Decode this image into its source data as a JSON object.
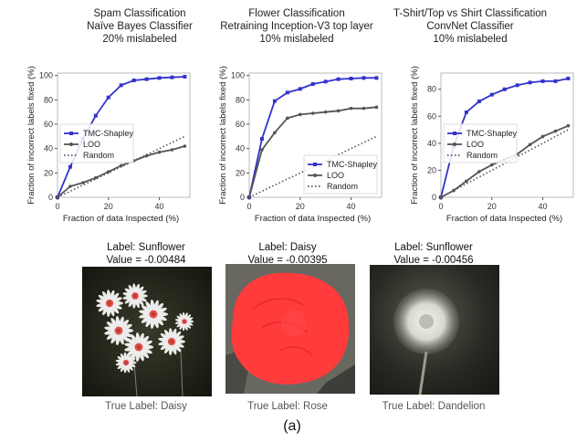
{
  "charts": [
    {
      "title_lines": [
        "Spam Classification",
        "Naïve Bayes Classifier",
        "20% mislabeled"
      ],
      "xlabel": "Fraction of data Inspected (%)",
      "ylabel": "Fraction of incorrect labels fixed (%)"
    },
    {
      "title_lines": [
        "Flower Classification",
        "Retraining Inception-V3 top layer",
        "10% mislabeled"
      ],
      "xlabel": "Fraction of data Inspected (%)",
      "ylabel": "Fraction of incorrect labels fixed (%)"
    },
    {
      "title_lines": [
        "T-Shirt/Top vs Shirt Classification",
        "ConvNet Classifier",
        "10% mislabeled"
      ],
      "xlabel": "Fraction of data Inspected (%)",
      "ylabel": "Fraction of incorrect labels fixed (%)"
    }
  ],
  "chart_data": [
    {
      "type": "line",
      "title": "Spam Classification Naïve Bayes Classifier 20% mislabeled",
      "xlabel": "Fraction of data Inspected (%)",
      "ylabel": "Fraction of incorrect labels fixed (%)",
      "xlim": [
        0,
        52
      ],
      "ylim": [
        0,
        102
      ],
      "xticks": [
        0,
        20,
        40
      ],
      "yticks": [
        0,
        20,
        40,
        60,
        80,
        100
      ],
      "legend_position": "center-left",
      "series": [
        {
          "name": "TMC-Shapley",
          "color": "#3333cc",
          "style": "solid-square",
          "x": [
            0,
            5,
            10,
            15,
            20,
            25,
            30,
            35,
            40,
            45,
            50
          ],
          "y": [
            0,
            25,
            48,
            67,
            82,
            92,
            96,
            97,
            98,
            98.5,
            99
          ]
        },
        {
          "name": "LOO",
          "color": "#555555",
          "style": "solid-circle",
          "x": [
            0,
            5,
            10,
            15,
            20,
            25,
            30,
            35,
            40,
            45,
            50
          ],
          "y": [
            0,
            9,
            12,
            16,
            21,
            26,
            30,
            34,
            37,
            39,
            42
          ]
        },
        {
          "name": "Random",
          "color": "#555555",
          "style": "dotted",
          "x": [
            0,
            50
          ],
          "y": [
            0,
            50
          ]
        }
      ]
    },
    {
      "type": "line",
      "title": "Flower Classification Retraining Inception-V3 top layer 10% mislabeled",
      "xlabel": "Fraction of data Inspected (%)",
      "ylabel": "Fraction of incorrect labels fixed (%)",
      "xlim": [
        0,
        52
      ],
      "ylim": [
        0,
        102
      ],
      "xticks": [
        0,
        20,
        40
      ],
      "yticks": [
        0,
        20,
        40,
        60,
        80,
        100
      ],
      "legend_position": "bottom-right",
      "series": [
        {
          "name": "TMC-Shapley",
          "color": "#3333cc",
          "style": "solid-square",
          "x": [
            0,
            5,
            10,
            15,
            20,
            25,
            30,
            35,
            40,
            45,
            50
          ],
          "y": [
            0,
            48,
            79,
            86,
            89,
            93,
            95,
            97,
            97.5,
            98,
            98
          ]
        },
        {
          "name": "LOO",
          "color": "#555555",
          "style": "solid-circle",
          "x": [
            0,
            5,
            10,
            15,
            20,
            25,
            30,
            35,
            40,
            45,
            50
          ],
          "y": [
            0,
            39,
            53,
            65,
            68,
            69,
            70,
            71,
            73,
            73,
            74
          ]
        },
        {
          "name": "Random",
          "color": "#555555",
          "style": "dotted",
          "x": [
            0,
            50
          ],
          "y": [
            0,
            50
          ]
        }
      ]
    },
    {
      "type": "line",
      "title": "T-Shirt/Top vs Shirt Classification ConvNet Classifier 10% mislabeled",
      "xlabel": "Fraction of data Inspected (%)",
      "ylabel": "Fraction of incorrect labels fixed (%)",
      "xlim": [
        0,
        52
      ],
      "ylim": [
        0,
        92
      ],
      "xticks": [
        0,
        20,
        40
      ],
      "yticks": [
        0,
        20,
        40,
        60,
        80
      ],
      "legend_position": "center-left",
      "series": [
        {
          "name": "TMC-Shapley",
          "color": "#3333cc",
          "style": "solid-square",
          "x": [
            0,
            5,
            10,
            15,
            20,
            25,
            30,
            35,
            40,
            45,
            50
          ],
          "y": [
            0,
            38,
            63,
            71,
            76,
            80,
            83,
            85,
            86,
            86,
            88
          ]
        },
        {
          "name": "LOO",
          "color": "#555555",
          "style": "solid-circle",
          "x": [
            0,
            5,
            10,
            15,
            20,
            25,
            30,
            35,
            40,
            45,
            50
          ],
          "y": [
            0,
            5,
            12,
            19,
            24,
            28,
            32,
            39,
            45,
            49,
            53
          ]
        },
        {
          "name": "Random",
          "color": "#555555",
          "style": "dotted",
          "x": [
            0,
            50
          ],
          "y": [
            0,
            50
          ]
        }
      ]
    }
  ],
  "images": [
    {
      "label": "Label: Sunflower",
      "value": "Value = -0.00484",
      "true_label": "True Label: Daisy",
      "icon": "daisy-photo"
    },
    {
      "label": "Label: Daisy",
      "value": "Value = -0.00395",
      "true_label": "True Label: Rose",
      "icon": "rose-photo"
    },
    {
      "label": "Label: Sunflower",
      "value": "Value = -0.00456",
      "true_label": "True Label: Dandelion",
      "icon": "dandelion-photo"
    }
  ],
  "caption": "(a)"
}
